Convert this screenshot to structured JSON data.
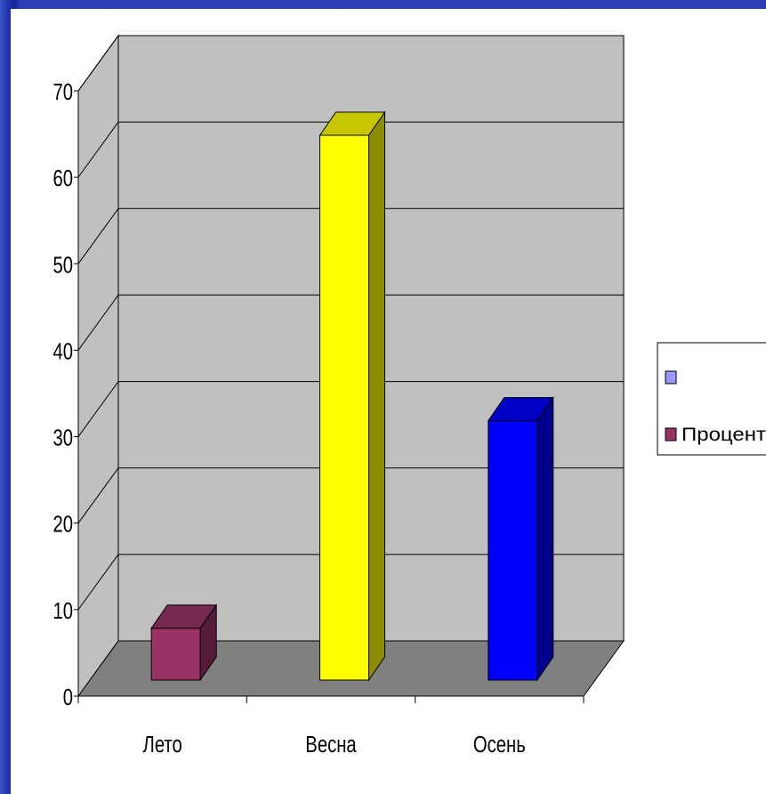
{
  "chart_data": {
    "type": "bar",
    "categories": [
      "Лето",
      "Весна",
      "Осень"
    ],
    "values": [
      6,
      63,
      30
    ],
    "colors": [
      "#993366",
      "#ffff00",
      "#0000ff"
    ],
    "ylim": [
      0,
      70
    ],
    "y_ticks": [
      "0",
      "10",
      "20",
      "30",
      "40",
      "50",
      "60",
      "70"
    ],
    "grid": true,
    "legend": {
      "position": "right",
      "entries": [
        {
          "label": "",
          "color": "#9999ff"
        },
        {
          "label": "Процент",
          "color": "#993366"
        }
      ]
    }
  }
}
